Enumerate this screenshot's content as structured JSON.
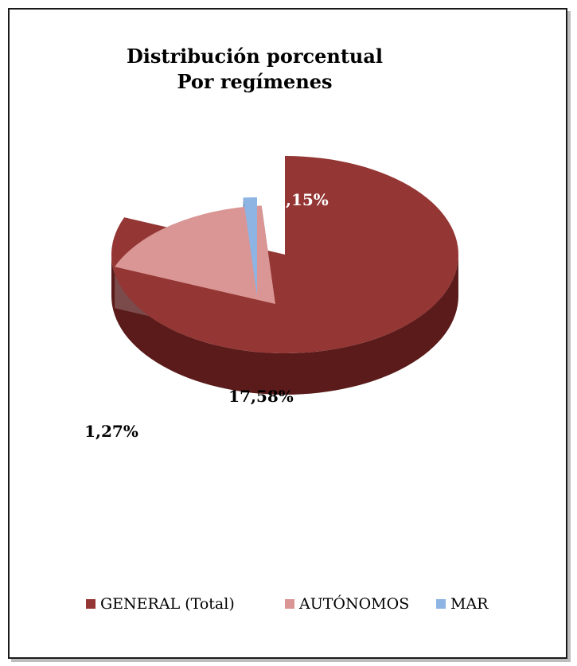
{
  "chart_data": {
    "type": "pie",
    "title_lines": [
      "Distribución porcentual",
      "Por regímenes"
    ],
    "slices": [
      {
        "name": "GENERAL (Total)",
        "value": 81.15,
        "label": "81,15%",
        "color": "#943634",
        "side_color": "#5a1b1a",
        "label_color": "#ffffff"
      },
      {
        "name": "AUTÓNOMOS",
        "value": 17.58,
        "label": "17,58%",
        "color": "#d99694",
        "side_color": "#7a4b4a",
        "label_color": "#000000"
      },
      {
        "name": "MAR",
        "value": 1.27,
        "label": "1,27%",
        "color": "#8eb4e3",
        "side_color": "#5b7fae",
        "label_color": "#000000"
      }
    ],
    "legend": {
      "placement": "bottom"
    },
    "style": "3d-exploded"
  }
}
